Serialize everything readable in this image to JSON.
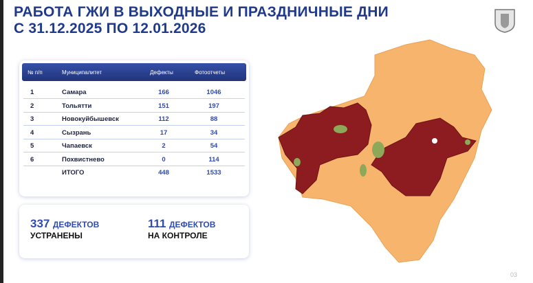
{
  "header": {
    "title_line1": "РАБОТА ГЖИ В ВЫХОДНЫЕ И ПРАЗДНИЧНЫЕ ДНИ",
    "title_line2": "С 31.12.2025 ПО 12.01.2026"
  },
  "table": {
    "columns": [
      "№ п/п",
      "Муниципалитет",
      "Дефекты",
      "Фотоотчеты"
    ],
    "rows": [
      [
        1,
        "Самара",
        166,
        1046
      ],
      [
        2,
        "Тольятти",
        151,
        197
      ],
      [
        3,
        "Новокуйбышевск",
        112,
        88
      ],
      [
        4,
        "Сызрань",
        17,
        34
      ],
      [
        5,
        "Чапаевск",
        2,
        54
      ],
      [
        6,
        "Похвистнево",
        0,
        114
      ]
    ],
    "total": {
      "label": "ИТОГО",
      "defects": 448,
      "photos": 1533
    }
  },
  "stats": [
    {
      "value": 337,
      "unit": "ДЕФЕКТОВ",
      "caption": "УСТРАНЕНЫ"
    },
    {
      "value": 111,
      "unit": "ДЕФЕКТОВ",
      "caption": "НА КОНТРОЛЕ"
    }
  ],
  "slide_number": "03"
}
